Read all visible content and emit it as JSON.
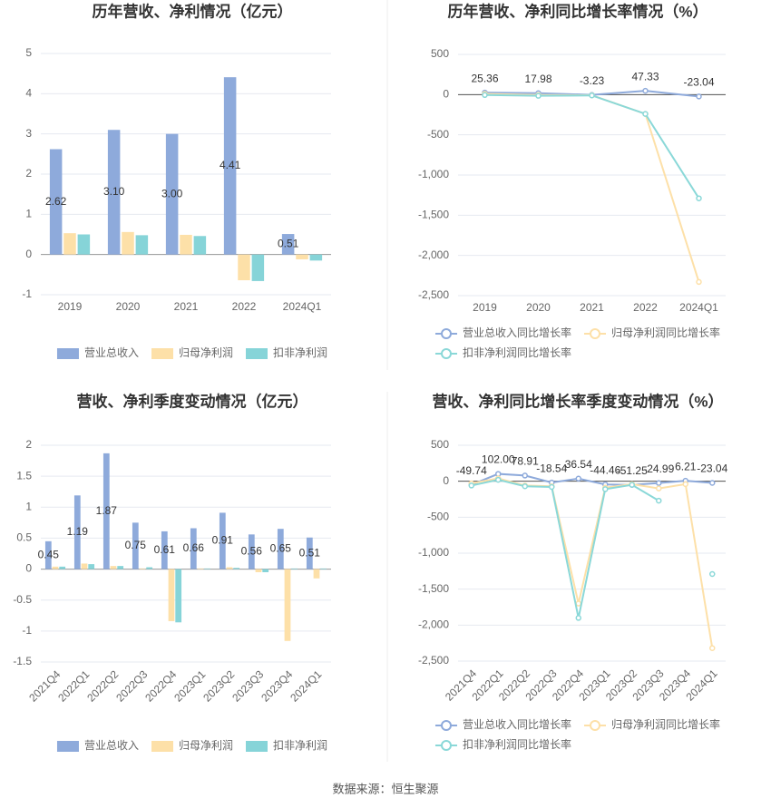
{
  "chart_data": [
    {
      "type": "bar",
      "title": "历年营收、净利情况（亿元）",
      "categories": [
        "2019",
        "2020",
        "2021",
        "2022",
        "2024Q1"
      ],
      "series": [
        {
          "name": "营业总收入",
          "color": "#8eaadb",
          "values": [
            2.62,
            3.1,
            3.0,
            4.41,
            0.51
          ],
          "value_labels": [
            "2.62",
            "3.10",
            "3.00",
            "4.41",
            "0.51"
          ]
        },
        {
          "name": "归母净利润",
          "color": "#fde0a8",
          "values": [
            0.53,
            0.56,
            0.49,
            -0.64,
            -0.12
          ]
        },
        {
          "name": "扣非净利润",
          "color": "#86d4d8",
          "values": [
            0.5,
            0.48,
            0.46,
            -0.66,
            -0.15
          ]
        }
      ],
      "ylim": [
        -1,
        5
      ],
      "yticks": [
        -1,
        0,
        1,
        2,
        3,
        4,
        5
      ],
      "grid": true
    },
    {
      "type": "line",
      "title": "历年营收、净利同比增长率情况（%）",
      "categories": [
        "2019",
        "2020",
        "2021",
        "2022",
        "2024Q1"
      ],
      "series": [
        {
          "name": "营业总收入同比增长率",
          "color": "#8eaadb",
          "values": [
            25.36,
            17.98,
            -3.23,
            47.33,
            -23.04
          ],
          "data_labels": true
        },
        {
          "name": "归母净利润同比增长率",
          "color": "#fde0a8",
          "values": [
            10,
            -5,
            -8,
            -240,
            -2330
          ]
        },
        {
          "name": "扣非净利润同比增长率",
          "color": "#8ad8d8",
          "values": [
            -5,
            -15,
            -10,
            -240,
            -1290
          ]
        }
      ],
      "ylim": [
        -2500,
        500
      ],
      "yticks": [
        500,
        0,
        -500,
        {
          "value": -1000,
          "label": "-1,000"
        },
        {
          "value": -1500,
          "label": "-1,500"
        },
        {
          "value": -2000,
          "label": "-2,000"
        },
        {
          "value": -2500,
          "label": "-2,500"
        }
      ],
      "grid": true
    },
    {
      "type": "bar",
      "title": "营收、净利季度变动情况（亿元）",
      "categories": [
        "2021Q4",
        "2022Q1",
        "2022Q2",
        "2022Q3",
        "2022Q4",
        "2023Q1",
        "2023Q2",
        "2023Q3",
        "2023Q4",
        "2024Q1"
      ],
      "series": [
        {
          "name": "营业总收入",
          "color": "#8eaadb",
          "values": [
            0.45,
            1.19,
            1.87,
            0.75,
            0.61,
            0.66,
            0.91,
            0.56,
            0.65,
            0.51
          ],
          "data_labels": true
        },
        {
          "name": "归母净利润",
          "color": "#fde0a8",
          "values": [
            0.04,
            0.09,
            0.05,
            0.01,
            -0.84,
            0.01,
            0.03,
            -0.05,
            -1.16,
            -0.15
          ]
        },
        {
          "name": "扣非净利润",
          "color": "#86d4d8",
          "values": [
            0.04,
            0.08,
            0.05,
            0.03,
            -0.86,
            0.01,
            0.02,
            -0.05,
            0.01,
            0.01
          ]
        }
      ],
      "ylim": [
        -1.5,
        2
      ],
      "yticks": [
        -1.5,
        -1,
        -0.5,
        0,
        0.5,
        1,
        1.5,
        2
      ],
      "grid": true
    },
    {
      "type": "line",
      "title": "营收、净利同比增长率季度变动情况（%）",
      "categories": [
        "2021Q4",
        "2022Q1",
        "2022Q2",
        "2022Q3",
        "2022Q4",
        "2023Q1",
        "2023Q2",
        "2023Q3",
        "2023Q4",
        "2024Q1"
      ],
      "series": [
        {
          "name": "营业总收入同比增长率",
          "color": "#8eaadb",
          "values": [
            -49.74,
            102.0,
            78.91,
            -18.54,
            36.54,
            -44.46,
            -51.25,
            -24.99,
            6.21,
            -23.04
          ],
          "value_labels": [
            "-49.74",
            "102.00",
            "78.91",
            "-18.54",
            "36.54",
            "-44.46",
            "-51.25",
            "-24.99",
            "6.21",
            "-23.04"
          ]
        },
        {
          "name": "归母净利润同比增长率",
          "color": "#fde0a8",
          "values": [
            -30,
            40,
            -60,
            -70,
            -1700,
            -90,
            -40,
            -100,
            -40,
            -2320
          ]
        },
        {
          "name": "扣非净利润同比增长率",
          "color": "#8ad8d8",
          "values": [
            -60,
            20,
            -70,
            -80,
            -1900,
            -110,
            -50,
            -270,
            null,
            -1290
          ]
        }
      ],
      "ylim": [
        -2500,
        500
      ],
      "yticks": [
        500,
        0,
        -500,
        {
          "value": -1000,
          "label": "-1,000"
        },
        {
          "value": -1500,
          "label": "-1,500"
        },
        {
          "value": -2000,
          "label": "-2,000"
        },
        {
          "value": -2500,
          "label": "-2,500"
        }
      ],
      "grid": true
    }
  ],
  "source": "数据来源：恒生聚源"
}
